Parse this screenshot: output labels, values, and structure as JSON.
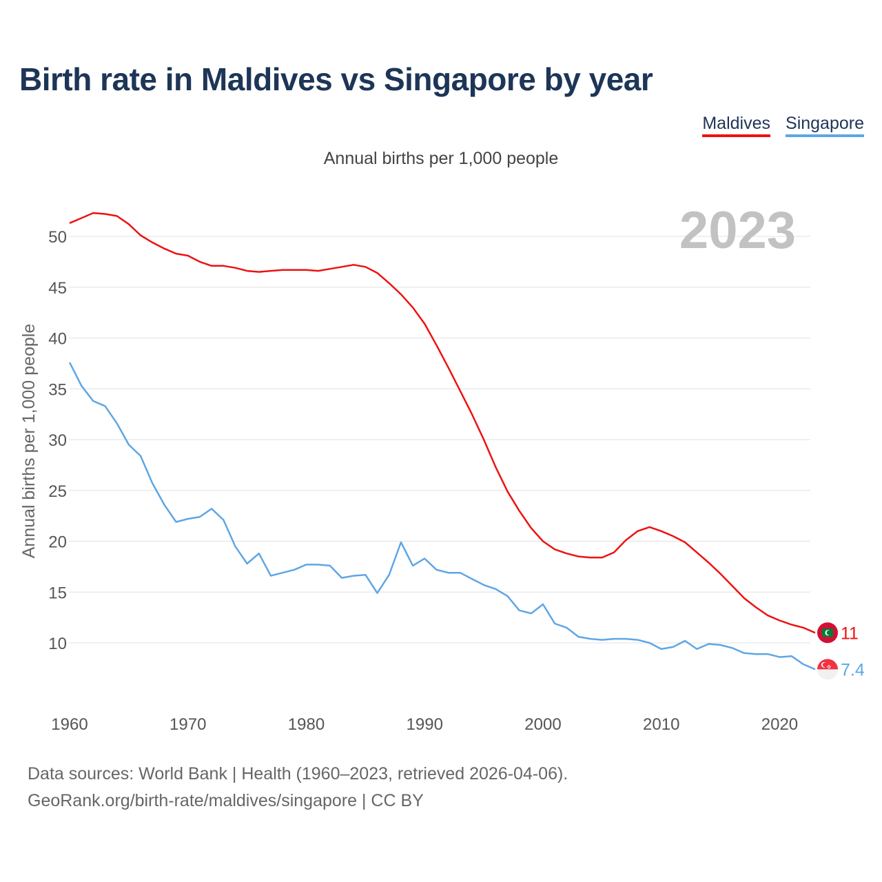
{
  "title": "Birth rate in Maldives vs Singapore by year",
  "subtitle": "Annual births per 1,000 people",
  "year_badge": "2023",
  "legend": [
    {
      "label": "Maldives",
      "color": "#ee1111"
    },
    {
      "label": "Singapore",
      "color": "#5ea6e4"
    }
  ],
  "footer": {
    "line1": "Data sources: World Bank | Health (1960–2023, retrieved 2026-04-06).",
    "line2": "GeoRank.org/birth-rate/maldives/singapore | CC BY"
  },
  "chart_data": {
    "type": "line",
    "title": "Birth rate in Maldives vs Singapore by year",
    "ylabel": "Annual births per 1,000 people",
    "xlabel": "",
    "xlim": [
      1960,
      2023
    ],
    "ylim": [
      5.5,
      55
    ],
    "x_ticks": [
      1960,
      1970,
      1980,
      1990,
      2000,
      2010,
      2020
    ],
    "y_ticks": [
      10,
      15,
      20,
      25,
      30,
      35,
      40,
      45,
      50
    ],
    "grid": true,
    "x": [
      1960,
      1961,
      1962,
      1963,
      1964,
      1965,
      1966,
      1967,
      1968,
      1969,
      1970,
      1971,
      1972,
      1973,
      1974,
      1975,
      1976,
      1977,
      1978,
      1979,
      1980,
      1981,
      1982,
      1983,
      1984,
      1985,
      1986,
      1987,
      1988,
      1989,
      1990,
      1991,
      1992,
      1993,
      1994,
      1995,
      1996,
      1997,
      1998,
      1999,
      2000,
      2001,
      2002,
      2003,
      2004,
      2005,
      2006,
      2007,
      2008,
      2009,
      2010,
      2011,
      2012,
      2013,
      2014,
      2015,
      2016,
      2017,
      2018,
      2019,
      2020,
      2021,
      2022,
      2023
    ],
    "series": [
      {
        "name": "Maldives",
        "color": "#ee1111",
        "end_label": "11",
        "values": [
          51.3,
          51.8,
          52.3,
          52.2,
          52.0,
          51.2,
          50.1,
          49.4,
          48.8,
          48.3,
          48.1,
          47.5,
          47.1,
          47.1,
          46.9,
          46.6,
          46.5,
          46.6,
          46.7,
          46.7,
          46.7,
          46.6,
          46.8,
          47.0,
          47.2,
          47.0,
          46.4,
          45.4,
          44.3,
          43.0,
          41.4,
          39.3,
          37.1,
          34.8,
          32.5,
          30.0,
          27.3,
          24.9,
          23.0,
          21.3,
          20.0,
          19.2,
          18.8,
          18.5,
          18.4,
          18.4,
          18.9,
          20.1,
          21.0,
          21.4,
          21.0,
          20.5,
          19.9,
          18.9,
          17.9,
          16.8,
          15.6,
          14.4,
          13.5,
          12.7,
          12.2,
          11.8,
          11.5,
          11.0
        ]
      },
      {
        "name": "Singapore",
        "color": "#5ea6e4",
        "end_label": "7.4",
        "values": [
          37.6,
          35.3,
          33.8,
          33.3,
          31.6,
          29.5,
          28.4,
          25.7,
          23.6,
          21.9,
          22.2,
          22.4,
          23.2,
          22.1,
          19.5,
          17.8,
          18.8,
          16.6,
          16.9,
          17.2,
          17.7,
          17.7,
          17.6,
          16.4,
          16.6,
          16.7,
          14.9,
          16.7,
          19.9,
          17.6,
          18.3,
          17.2,
          16.9,
          16.9,
          16.3,
          15.7,
          15.3,
          14.6,
          13.2,
          12.9,
          13.8,
          11.9,
          11.5,
          10.6,
          10.4,
          10.3,
          10.4,
          10.4,
          10.3,
          10.0,
          9.4,
          9.6,
          10.2,
          9.4,
          9.9,
          9.8,
          9.5,
          9.0,
          8.9,
          8.9,
          8.6,
          8.7,
          7.9,
          7.4
        ]
      }
    ]
  }
}
